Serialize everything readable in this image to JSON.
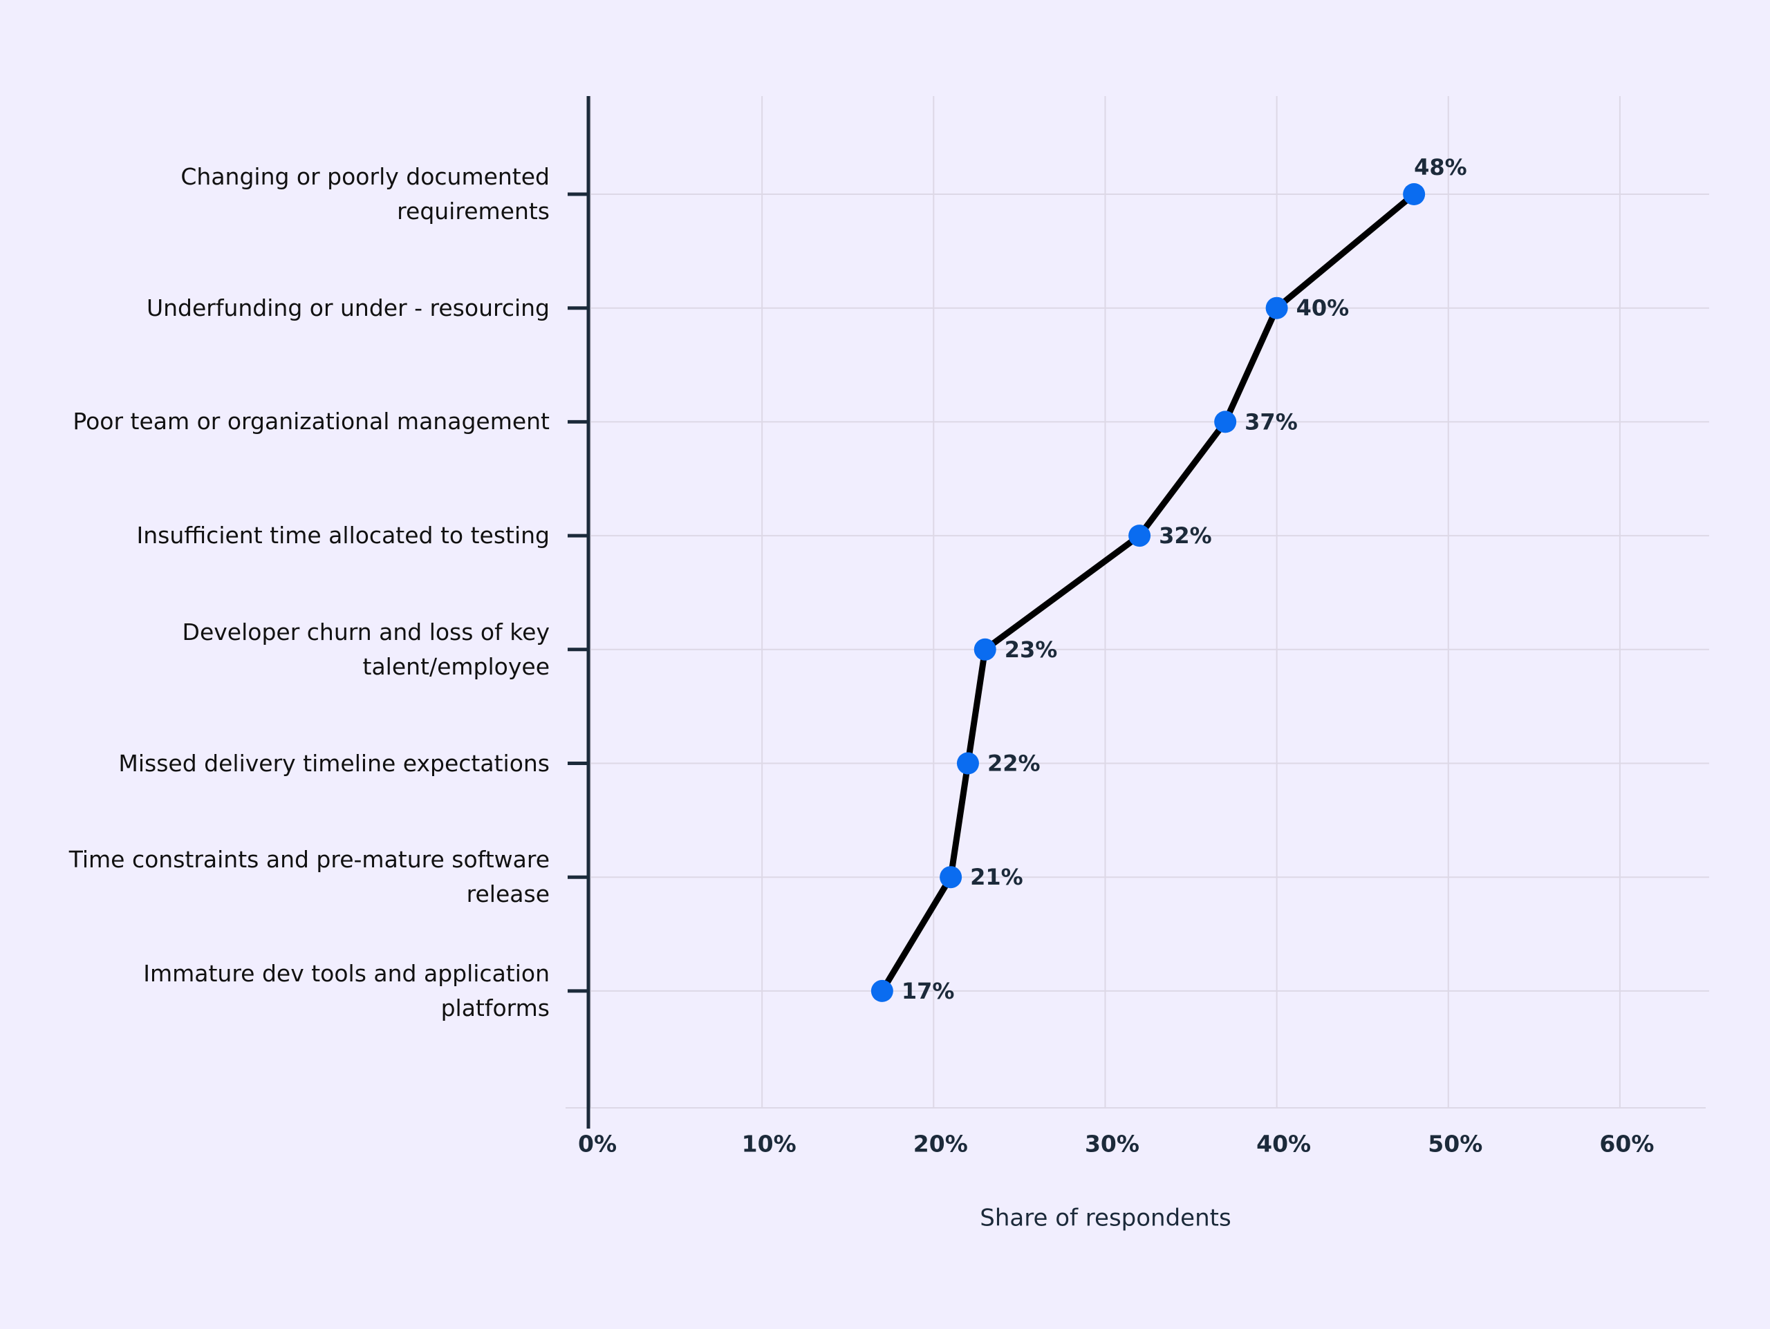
{
  "chart_data": {
    "type": "line",
    "orientation": "horizontal",
    "x_label": "Share of respondents",
    "categories": [
      "Changing or poorly documented requirements",
      "Underfunding or under - resourcing",
      "Poor team or organizational management",
      "Insufficient time allocated to testing",
      "Developer churn and loss of key talent/employee",
      "Missed delivery timeline expectations",
      "Time constraints and pre-mature software release",
      "Immature dev tools and application platforms"
    ],
    "values": [
      48,
      40,
      37,
      32,
      23,
      22,
      21,
      17
    ],
    "value_labels": [
      "48%",
      "40%",
      "37%",
      "32%",
      "23%",
      "22%",
      "21%",
      "17%"
    ],
    "line_color": "#000000",
    "marker_color": "#0a6cf0",
    "xlim": [
      0,
      65
    ],
    "xticks": [
      {
        "value": 0,
        "label": "0%"
      },
      {
        "value": 10,
        "label": "10%"
      },
      {
        "value": 20,
        "label": "20%"
      },
      {
        "value": 30,
        "label": "30%"
      },
      {
        "value": 40,
        "label": "40%"
      },
      {
        "value": 50,
        "label": "50%"
      },
      {
        "value": 60,
        "label": "60%"
      }
    ],
    "grid": true
  }
}
